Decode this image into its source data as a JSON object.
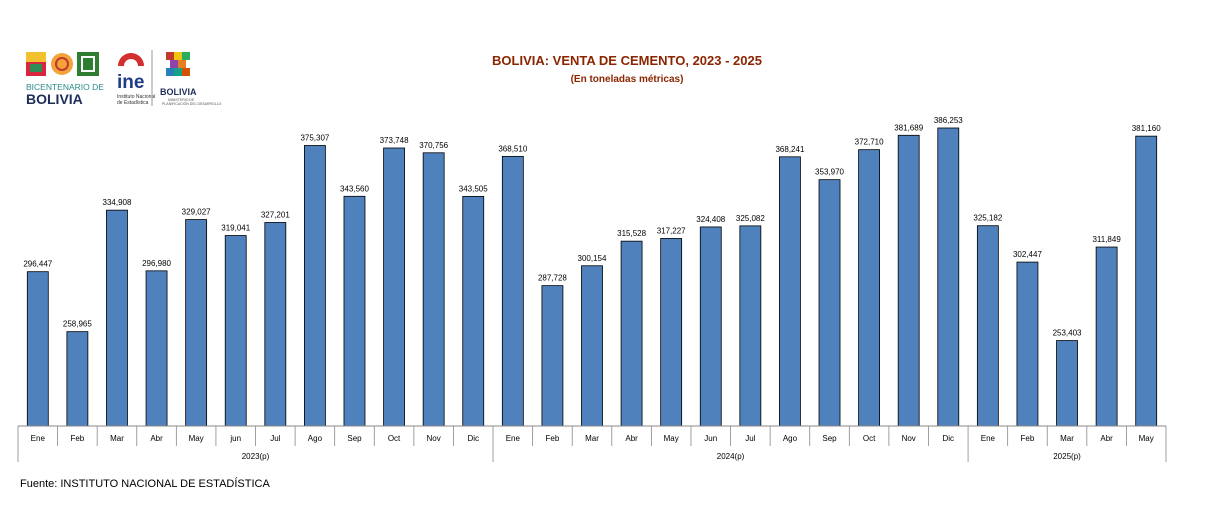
{
  "logos": {
    "bicentenario_line1": "BICENTENARIO DE",
    "bicentenario_line2": "BOLIVIA",
    "ine_mark": "ine",
    "ine_line1": "Instituto Nacional",
    "ine_line2": "de Estadística",
    "ministry_name": "BOLIVIA",
    "ministry_sub1": "MINISTERIO DE",
    "ministry_sub2": "PLANIFICACIÓN DEL DESARROLLO"
  },
  "footer": {
    "source": "Fuente: INSTITUTO NACIONAL DE ESTADÍSTICA"
  },
  "colors": {
    "bar": "#4f81bd",
    "bar_stroke": "#000000",
    "title": "#8b2500"
  },
  "chart_data": {
    "type": "bar",
    "title": "BOLIVIA: VENTA DE CEMENTO, 2023 - 2025",
    "subtitle": "(En toneladas métricas)",
    "xlabel": "",
    "ylabel": "",
    "ylim": [
      200000,
      400000
    ],
    "grid": false,
    "legend": "none",
    "categories": [
      "Ene",
      "Feb",
      "Mar",
      "Abr",
      "May",
      "jun",
      "Jul",
      "Ago",
      "Sep",
      "Oct",
      "Nov",
      "Dic",
      "Ene",
      "Feb",
      "Mar",
      "Abr",
      "May",
      "Jun",
      "Jul",
      "Ago",
      "Sep",
      "Oct",
      "Nov",
      "Dic",
      "Ene",
      "Feb",
      "Mar",
      "Abr",
      "May"
    ],
    "values": [
      296447,
      258965,
      334908,
      296980,
      329027,
      319041,
      327201,
      375307,
      343560,
      373748,
      370756,
      343505,
      368510,
      287728,
      300154,
      315528,
      317227,
      324408,
      325082,
      368241,
      353970,
      372710,
      381689,
      386253,
      325182,
      302447,
      253403,
      311849,
      381160
    ],
    "value_labels": [
      "296,447",
      "258,965",
      "334,908",
      "296,980",
      "329,027",
      "319,041",
      "327,201",
      "375,307",
      "343,560",
      "373,748",
      "370,756",
      "343,505",
      "368,510",
      "287,728",
      "300,154",
      "315,528",
      "317,227",
      "324,408",
      "325,082",
      "368,241",
      "353,970",
      "372,710",
      "381,689",
      "386,253",
      "325,182",
      "302,447",
      "253,403",
      "311,849",
      "381,160"
    ],
    "groups": [
      {
        "label": "2023(p)",
        "count": 12
      },
      {
        "label": "2024(p)",
        "count": 12
      },
      {
        "label": "2025(p)",
        "count": 5
      }
    ]
  }
}
